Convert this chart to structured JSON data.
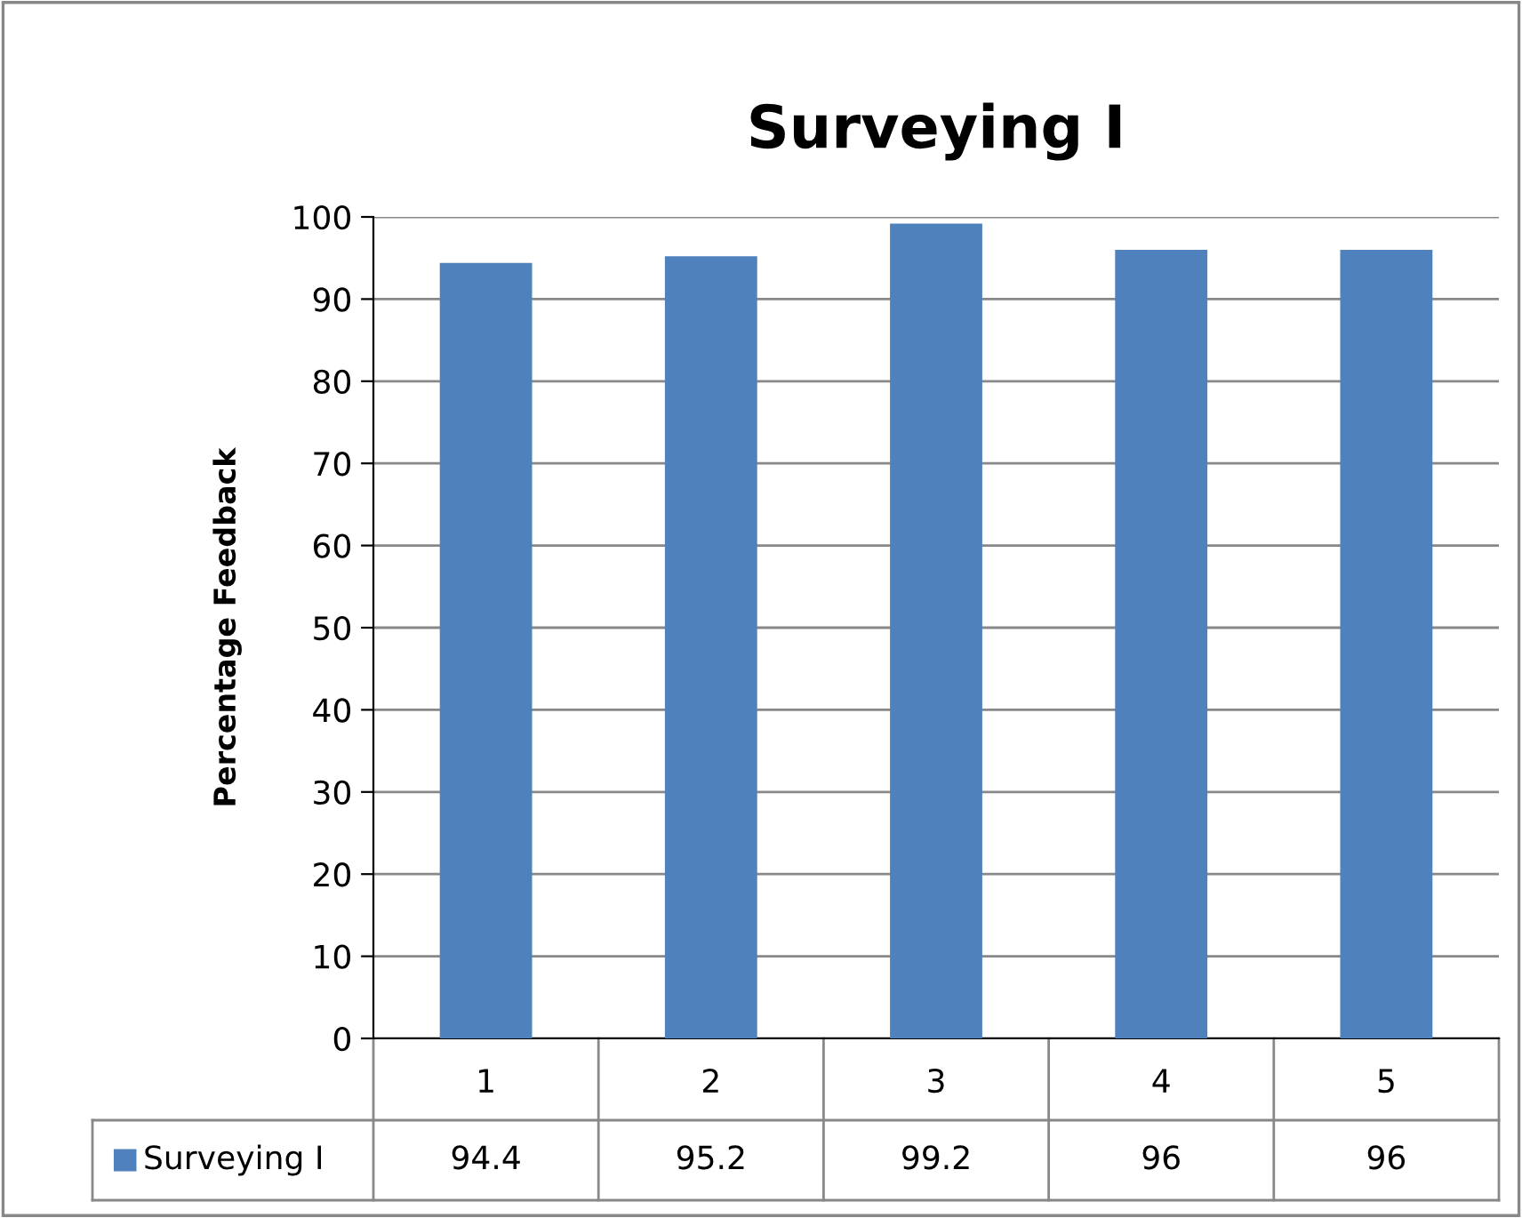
{
  "chart_data": {
    "type": "bar",
    "title": "Surveying I",
    "ylabel": "Percentage Feedback",
    "categories": [
      "1",
      "2",
      "3",
      "4",
      "5"
    ],
    "series": [
      {
        "name": "Surveying I",
        "color": "#4f81bd",
        "values": [
          94.4,
          95.2,
          99.2,
          96,
          96
        ]
      }
    ],
    "ylim": [
      0,
      100
    ],
    "yticks": [
      0,
      10,
      20,
      30,
      40,
      50,
      60,
      70,
      80,
      90,
      100
    ],
    "grid": "y",
    "legend": "bottom",
    "data_labels": true
  }
}
